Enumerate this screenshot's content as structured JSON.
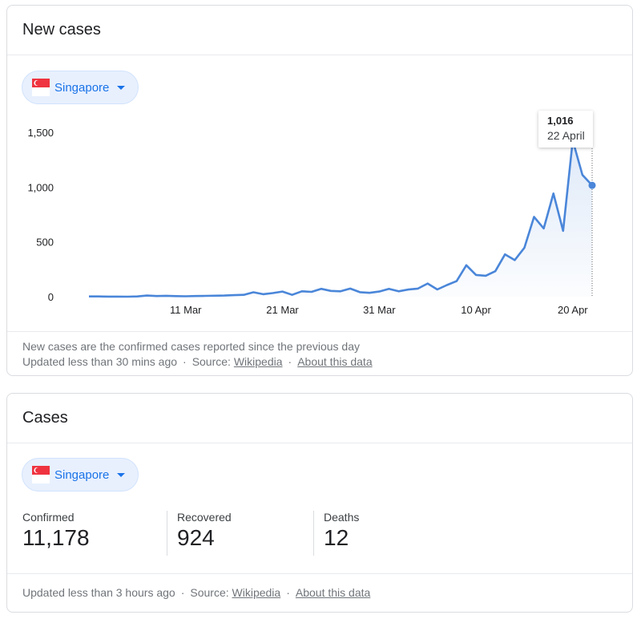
{
  "new_cases_card": {
    "title": "New cases",
    "country": "Singapore",
    "tooltip": {
      "value": "1,016",
      "date": "22 April"
    },
    "note": "New cases are the confirmed cases reported since the previous day",
    "updated": "Updated less than 30 mins ago",
    "source_label": "Source:",
    "source_link": "Wikipedia",
    "about_link": "About this data"
  },
  "cases_card": {
    "title": "Cases",
    "country": "Singapore",
    "confirmed_label": "Confirmed",
    "confirmed_value": "11,178",
    "recovered_label": "Recovered",
    "recovered_value": "924",
    "deaths_label": "Deaths",
    "deaths_value": "12",
    "updated": "Updated less than 3 hours ago",
    "source_label": "Source:",
    "source_link": "Wikipedia",
    "about_link": "About this data"
  },
  "colors": {
    "line": "#4a86d9",
    "flag_red": "#ef3340",
    "chip_bg": "#e8f0fe",
    "link_blue": "#1a73e8"
  },
  "chart_data": {
    "type": "line",
    "title": "",
    "xlabel": "",
    "ylabel": "",
    "ylim": [
      0,
      1500
    ],
    "yticks": [
      "0",
      "500",
      "1,000",
      "1,500"
    ],
    "xticks": [
      {
        "label": "11 Mar",
        "index": 10
      },
      {
        "label": "21 Mar",
        "index": 20
      },
      {
        "label": "31 Mar",
        "index": 30
      },
      {
        "label": "10 Apr",
        "index": 40
      },
      {
        "label": "20 Apr",
        "index": 50
      }
    ],
    "x_start": "1 Mar",
    "x_end": "22 Apr",
    "values": [
      2,
      2,
      1,
      1,
      0,
      2,
      10,
      6,
      8,
      5,
      4,
      6,
      7,
      9,
      10,
      14,
      17,
      40,
      23,
      33,
      47,
      17,
      49,
      44,
      72,
      53,
      49,
      74,
      41,
      35,
      47,
      72,
      49,
      65,
      74,
      120,
      66,
      106,
      142,
      287,
      198,
      191,
      233,
      386,
      334,
      447,
      728,
      623,
      942,
      601,
      1426,
      1111,
      1016
    ],
    "highlight": {
      "index": 52,
      "value": 1016,
      "label": "22 April"
    },
    "grid": false,
    "legend": "none"
  }
}
